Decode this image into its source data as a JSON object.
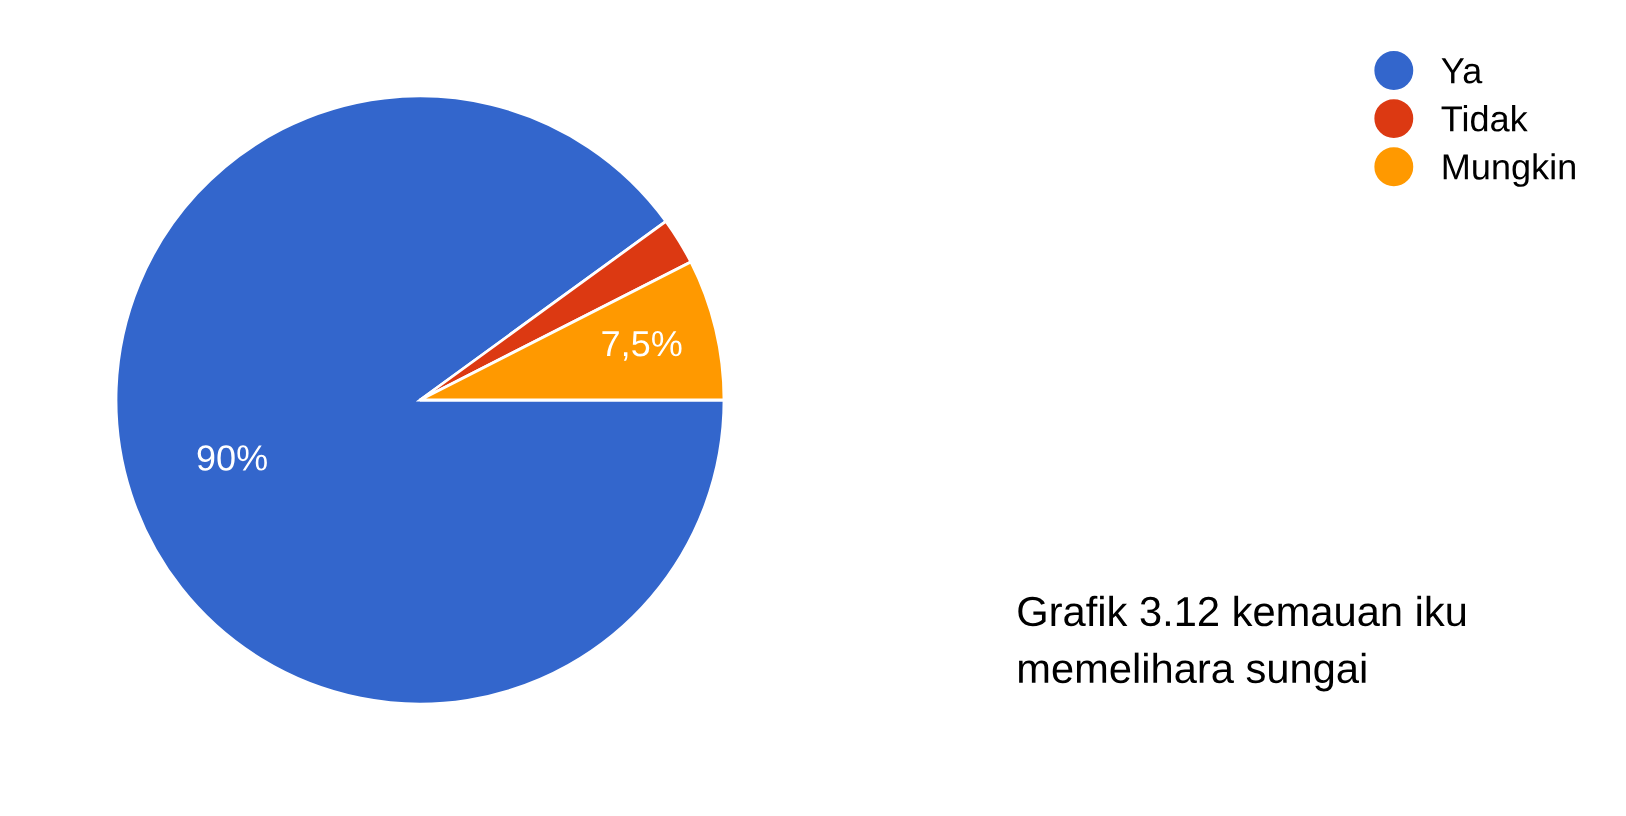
{
  "chart_data": {
    "type": "pie",
    "categories": [
      "Ya",
      "Tidak",
      "Mungkin"
    ],
    "values": [
      90,
      2.5,
      7.5
    ],
    "colors": [
      "#3366cc",
      "#dc3912",
      "#ff9900"
    ],
    "value_labels": [
      "90%",
      null,
      "7,5%"
    ],
    "legend": "top right",
    "annotations": [
      "Grafik 3.12 kemauan iku\nmemelihara sungai"
    ]
  }
}
